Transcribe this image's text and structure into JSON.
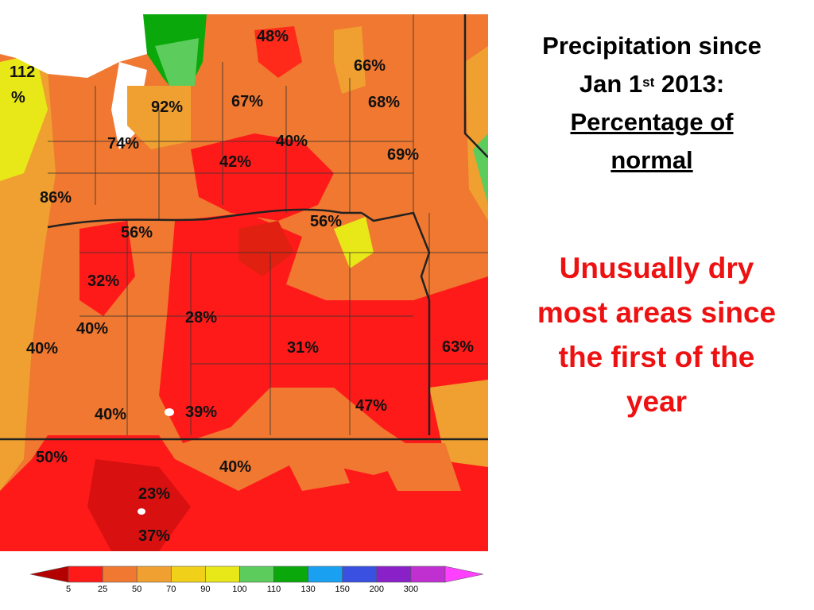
{
  "title": {
    "line1": "Precipitation since",
    "line2_prefix": "Jan 1",
    "line2_sup": "st",
    "line2_suffix": " 2013:",
    "line3": "Percentage of",
    "line4": "normal"
  },
  "note": {
    "line1": "Unusually dry",
    "line2": "most areas since",
    "line3": "the first of the",
    "line4": "year"
  },
  "map_labels": [
    {
      "id": "l-48",
      "text": "48%"
    },
    {
      "id": "l-112a",
      "text": "112"
    },
    {
      "id": "l-112b",
      "text": "%"
    },
    {
      "id": "l-66",
      "text": "66%"
    },
    {
      "id": "l-92",
      "text": "92%"
    },
    {
      "id": "l-67",
      "text": "67%"
    },
    {
      "id": "l-68",
      "text": "68%"
    },
    {
      "id": "l-74",
      "text": "74%"
    },
    {
      "id": "l-40a",
      "text": "40%"
    },
    {
      "id": "l-42",
      "text": "42%"
    },
    {
      "id": "l-69",
      "text": "69%"
    },
    {
      "id": "l-86",
      "text": "86%"
    },
    {
      "id": "l-56a",
      "text": "56%"
    },
    {
      "id": "l-56b",
      "text": "56%"
    },
    {
      "id": "l-32",
      "text": "32%"
    },
    {
      "id": "l-28",
      "text": "28%"
    },
    {
      "id": "l-40b",
      "text": "40%"
    },
    {
      "id": "l-40c",
      "text": "40%"
    },
    {
      "id": "l-31",
      "text": "31%"
    },
    {
      "id": "l-63",
      "text": "63%"
    },
    {
      "id": "l-47",
      "text": "47%"
    },
    {
      "id": "l-40d",
      "text": "40%"
    },
    {
      "id": "l-39",
      "text": "39%"
    },
    {
      "id": "l-50",
      "text": "50%"
    },
    {
      "id": "l-40e",
      "text": "40%"
    },
    {
      "id": "l-23",
      "text": "23%"
    },
    {
      "id": "l-37",
      "text": "37%"
    }
  ],
  "legend": {
    "colors": [
      "#b30000",
      "#ff1a1a",
      "#f07830",
      "#f0a030",
      "#f0d018",
      "#e8e818",
      "#5ccc5c",
      "#0aa80a",
      "#1aa0f0",
      "#3a50e0",
      "#8a20c8",
      "#c030d0",
      "#ff40ff"
    ],
    "ticks": [
      "5",
      "25",
      "50",
      "70",
      "90",
      "100",
      "110",
      "130",
      "150",
      "200",
      "300"
    ]
  }
}
